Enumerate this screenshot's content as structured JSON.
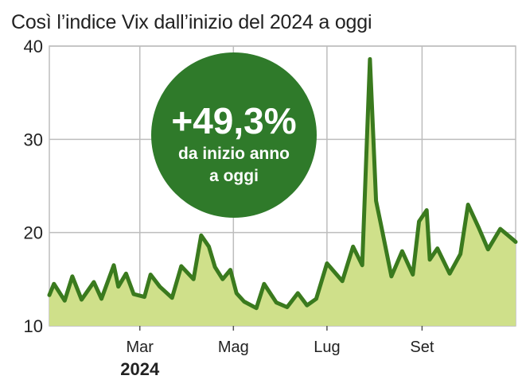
{
  "title": "Così l’indice Vix dall’inizio del 2024 a oggi",
  "badge": {
    "value": "+49,3%",
    "line1": "da inizio anno",
    "line2": "a oggi"
  },
  "colors": {
    "line": "#3a7a1e",
    "area": "#cfe08a",
    "badge": "#2f7a2a",
    "grid": "#bdbdbd"
  },
  "chart_data": {
    "type": "area",
    "title": "Così l’indice Vix dall’inizio del 2024 a oggi",
    "xlabel": "",
    "ylabel": "",
    "ylim": [
      10,
      40
    ],
    "yticks": [
      "10",
      "20",
      "30",
      "40"
    ],
    "xticks": [
      "Mar",
      "Mag",
      "Lug",
      "Set"
    ],
    "year_label": "2024",
    "grid": true,
    "x": [
      "2024-01-02",
      "2024-01-05",
      "2024-01-12",
      "2024-01-17",
      "2024-01-23",
      "2024-01-31",
      "2024-02-05",
      "2024-02-13",
      "2024-02-16",
      "2024-02-21",
      "2024-02-26",
      "2024-03-04",
      "2024-03-08",
      "2024-03-14",
      "2024-03-22",
      "2024-03-28",
      "2024-04-05",
      "2024-04-10",
      "2024-04-15",
      "2024-04-19",
      "2024-04-24",
      "2024-04-29",
      "2024-05-03",
      "2024-05-08",
      "2024-05-16",
      "2024-05-21",
      "2024-05-29",
      "2024-06-05",
      "2024-06-12",
      "2024-06-18",
      "2024-06-24",
      "2024-07-01",
      "2024-07-11",
      "2024-07-18",
      "2024-07-24",
      "2024-07-29",
      "2024-08-02",
      "2024-08-05",
      "2024-08-12",
      "2024-08-19",
      "2024-08-26",
      "2024-08-30",
      "2024-09-04",
      "2024-09-06",
      "2024-09-11",
      "2024-09-19",
      "2024-09-26",
      "2024-10-01",
      "2024-10-08",
      "2024-10-14",
      "2024-10-22",
      "2024-10-30",
      "2024-11-01"
    ],
    "series": [
      {
        "values": [
          13.3,
          14.5,
          12.7,
          15.3,
          12.8,
          14.7,
          12.9,
          16.5,
          14.2,
          15.6,
          13.4,
          13.1,
          15.5,
          14.2,
          13.0,
          16.4,
          15.0,
          19.7,
          18.5,
          16.3,
          15.0,
          16.0,
          13.5,
          12.6,
          11.9,
          14.5,
          12.5,
          12.0,
          13.5,
          12.2,
          12.9,
          16.7,
          14.8,
          18.5,
          16.5,
          38.6,
          23.4,
          21.0,
          15.3,
          18.0,
          15.5,
          21.2,
          22.4,
          17.1,
          18.3,
          15.6,
          17.7,
          23.0,
          20.5,
          18.2,
          20.4,
          19.3,
          19.0
        ]
      }
    ]
  }
}
